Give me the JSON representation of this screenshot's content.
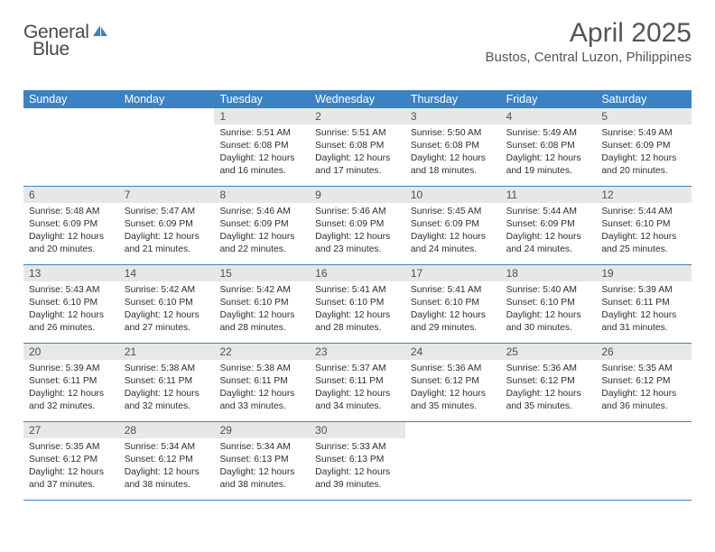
{
  "brand": {
    "general": "General",
    "blue": "Blue"
  },
  "title": "April 2025",
  "location": "Bustos, Central Luzon, Philippines",
  "colors": {
    "primary": "#3b82c4",
    "headerTextGray": "#555555",
    "dayNumBg": "#e7e7e7",
    "white": "#ffffff"
  },
  "daysOfWeek": [
    "Sunday",
    "Monday",
    "Tuesday",
    "Wednesday",
    "Thursday",
    "Friday",
    "Saturday"
  ],
  "weeks": [
    [
      {
        "empty": true
      },
      {
        "empty": true
      },
      {
        "num": "1",
        "sunrise": "Sunrise: 5:51 AM",
        "sunset": "Sunset: 6:08 PM",
        "daylight": "Daylight: 12 hours and 16 minutes."
      },
      {
        "num": "2",
        "sunrise": "Sunrise: 5:51 AM",
        "sunset": "Sunset: 6:08 PM",
        "daylight": "Daylight: 12 hours and 17 minutes."
      },
      {
        "num": "3",
        "sunrise": "Sunrise: 5:50 AM",
        "sunset": "Sunset: 6:08 PM",
        "daylight": "Daylight: 12 hours and 18 minutes."
      },
      {
        "num": "4",
        "sunrise": "Sunrise: 5:49 AM",
        "sunset": "Sunset: 6:08 PM",
        "daylight": "Daylight: 12 hours and 19 minutes."
      },
      {
        "num": "5",
        "sunrise": "Sunrise: 5:49 AM",
        "sunset": "Sunset: 6:09 PM",
        "daylight": "Daylight: 12 hours and 20 minutes."
      }
    ],
    [
      {
        "num": "6",
        "sunrise": "Sunrise: 5:48 AM",
        "sunset": "Sunset: 6:09 PM",
        "daylight": "Daylight: 12 hours and 20 minutes."
      },
      {
        "num": "7",
        "sunrise": "Sunrise: 5:47 AM",
        "sunset": "Sunset: 6:09 PM",
        "daylight": "Daylight: 12 hours and 21 minutes."
      },
      {
        "num": "8",
        "sunrise": "Sunrise: 5:46 AM",
        "sunset": "Sunset: 6:09 PM",
        "daylight": "Daylight: 12 hours and 22 minutes."
      },
      {
        "num": "9",
        "sunrise": "Sunrise: 5:46 AM",
        "sunset": "Sunset: 6:09 PM",
        "daylight": "Daylight: 12 hours and 23 minutes."
      },
      {
        "num": "10",
        "sunrise": "Sunrise: 5:45 AM",
        "sunset": "Sunset: 6:09 PM",
        "daylight": "Daylight: 12 hours and 24 minutes."
      },
      {
        "num": "11",
        "sunrise": "Sunrise: 5:44 AM",
        "sunset": "Sunset: 6:09 PM",
        "daylight": "Daylight: 12 hours and 24 minutes."
      },
      {
        "num": "12",
        "sunrise": "Sunrise: 5:44 AM",
        "sunset": "Sunset: 6:10 PM",
        "daylight": "Daylight: 12 hours and 25 minutes."
      }
    ],
    [
      {
        "num": "13",
        "sunrise": "Sunrise: 5:43 AM",
        "sunset": "Sunset: 6:10 PM",
        "daylight": "Daylight: 12 hours and 26 minutes."
      },
      {
        "num": "14",
        "sunrise": "Sunrise: 5:42 AM",
        "sunset": "Sunset: 6:10 PM",
        "daylight": "Daylight: 12 hours and 27 minutes."
      },
      {
        "num": "15",
        "sunrise": "Sunrise: 5:42 AM",
        "sunset": "Sunset: 6:10 PM",
        "daylight": "Daylight: 12 hours and 28 minutes."
      },
      {
        "num": "16",
        "sunrise": "Sunrise: 5:41 AM",
        "sunset": "Sunset: 6:10 PM",
        "daylight": "Daylight: 12 hours and 28 minutes."
      },
      {
        "num": "17",
        "sunrise": "Sunrise: 5:41 AM",
        "sunset": "Sunset: 6:10 PM",
        "daylight": "Daylight: 12 hours and 29 minutes."
      },
      {
        "num": "18",
        "sunrise": "Sunrise: 5:40 AM",
        "sunset": "Sunset: 6:10 PM",
        "daylight": "Daylight: 12 hours and 30 minutes."
      },
      {
        "num": "19",
        "sunrise": "Sunrise: 5:39 AM",
        "sunset": "Sunset: 6:11 PM",
        "daylight": "Daylight: 12 hours and 31 minutes."
      }
    ],
    [
      {
        "num": "20",
        "sunrise": "Sunrise: 5:39 AM",
        "sunset": "Sunset: 6:11 PM",
        "daylight": "Daylight: 12 hours and 32 minutes."
      },
      {
        "num": "21",
        "sunrise": "Sunrise: 5:38 AM",
        "sunset": "Sunset: 6:11 PM",
        "daylight": "Daylight: 12 hours and 32 minutes."
      },
      {
        "num": "22",
        "sunrise": "Sunrise: 5:38 AM",
        "sunset": "Sunset: 6:11 PM",
        "daylight": "Daylight: 12 hours and 33 minutes."
      },
      {
        "num": "23",
        "sunrise": "Sunrise: 5:37 AM",
        "sunset": "Sunset: 6:11 PM",
        "daylight": "Daylight: 12 hours and 34 minutes."
      },
      {
        "num": "24",
        "sunrise": "Sunrise: 5:36 AM",
        "sunset": "Sunset: 6:12 PM",
        "daylight": "Daylight: 12 hours and 35 minutes."
      },
      {
        "num": "25",
        "sunrise": "Sunrise: 5:36 AM",
        "sunset": "Sunset: 6:12 PM",
        "daylight": "Daylight: 12 hours and 35 minutes."
      },
      {
        "num": "26",
        "sunrise": "Sunrise: 5:35 AM",
        "sunset": "Sunset: 6:12 PM",
        "daylight": "Daylight: 12 hours and 36 minutes."
      }
    ],
    [
      {
        "num": "27",
        "sunrise": "Sunrise: 5:35 AM",
        "sunset": "Sunset: 6:12 PM",
        "daylight": "Daylight: 12 hours and 37 minutes."
      },
      {
        "num": "28",
        "sunrise": "Sunrise: 5:34 AM",
        "sunset": "Sunset: 6:12 PM",
        "daylight": "Daylight: 12 hours and 38 minutes."
      },
      {
        "num": "29",
        "sunrise": "Sunrise: 5:34 AM",
        "sunset": "Sunset: 6:13 PM",
        "daylight": "Daylight: 12 hours and 38 minutes."
      },
      {
        "num": "30",
        "sunrise": "Sunrise: 5:33 AM",
        "sunset": "Sunset: 6:13 PM",
        "daylight": "Daylight: 12 hours and 39 minutes."
      },
      {
        "empty": true
      },
      {
        "empty": true
      },
      {
        "empty": true
      }
    ]
  ]
}
